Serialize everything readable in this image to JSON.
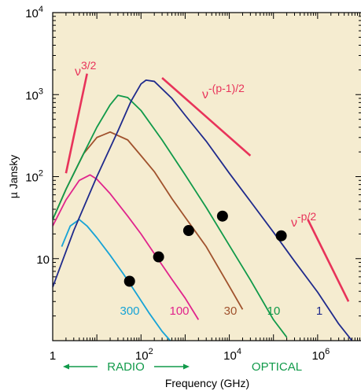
{
  "chart_data": {
    "type": "line",
    "xlabel": "Frequency (GHz)",
    "ylabel": "µ Jansky",
    "x_scale": "log",
    "y_scale": "log",
    "xlim": [
      1,
      10000000
    ],
    "ylim": [
      1,
      10000
    ],
    "x_ticks": [
      {
        "value": 1,
        "base": "1",
        "exp": ""
      },
      {
        "value": 100,
        "base": "10",
        "exp": "2"
      },
      {
        "value": 10000,
        "base": "10",
        "exp": "4"
      },
      {
        "value": 1000000,
        "base": "10",
        "exp": "6"
      }
    ],
    "y_ticks": [
      {
        "value": 10,
        "base": "10",
        "exp": ""
      },
      {
        "value": 100,
        "base": "10",
        "exp": "2"
      },
      {
        "value": 1000,
        "base": "10",
        "exp": "3"
      },
      {
        "value": 10000,
        "base": "10",
        "exp": "4"
      }
    ],
    "background_color": "#f5ecd0",
    "series": [
      {
        "label": "300",
        "color": "#17a3d6",
        "x": [
          1.6,
          2.5,
          4,
          6,
          10,
          20,
          40,
          80,
          150,
          300,
          500
        ],
        "y": [
          14,
          25,
          30,
          25,
          18,
          11,
          6.5,
          3.7,
          2.2,
          1.3,
          0.95
        ]
      },
      {
        "label": "100",
        "color": "#e0248c",
        "x": [
          1,
          2,
          4,
          7,
          10,
          20,
          50,
          100,
          200,
          500,
          1000,
          2000
        ],
        "y": [
          25,
          52,
          90,
          105,
          93,
          62,
          33,
          20,
          11.5,
          5.6,
          3.3,
          1.8
        ]
      },
      {
        "label": "30",
        "color": "#a0522d",
        "x": [
          1,
          2,
          5,
          10,
          20,
          50,
          100,
          200,
          500,
          1000,
          3000,
          10000,
          20000
        ],
        "y": [
          30,
          70,
          190,
          300,
          350,
          280,
          180,
          115,
          54,
          32,
          14,
          4.6,
          2.4
        ]
      },
      {
        "label": "10",
        "color": "#119a4a",
        "x": [
          1,
          2,
          5,
          10,
          20,
          30,
          50,
          100,
          300,
          1000,
          3000,
          10000,
          30000,
          100000,
          200000
        ],
        "y": [
          30,
          70,
          190,
          400,
          750,
          980,
          920,
          640,
          280,
          105,
          42,
          14.5,
          5.5,
          1.8,
          1.1
        ]
      },
      {
        "label": "1",
        "color": "#1f2a8c",
        "x": [
          1,
          3,
          10,
          30,
          60,
          100,
          130,
          200,
          500,
          1000,
          3000,
          10000,
          30000,
          100000,
          300000,
          1000000,
          3000000,
          6000000
        ],
        "y": [
          4.5,
          22,
          100,
          360,
          840,
          1350,
          1500,
          1450,
          900,
          560,
          270,
          110,
          50,
          21,
          9.3,
          3.9,
          1.6,
          1
        ]
      }
    ],
    "markers": {
      "color": "#000000",
      "x": [
        55,
        250,
        1200,
        7000,
        150000
      ],
      "y": [
        5.3,
        10.5,
        22,
        33,
        19
      ]
    },
    "slope_annotations": [
      {
        "base": "ν",
        "exp": "3/2",
        "color": "#e8335a",
        "line_x": [
          2,
          6
        ],
        "line_y": [
          110,
          1800
        ]
      },
      {
        "base": "ν",
        "exp": "-(p-1)/2",
        "color": "#e8335a",
        "line_x": [
          300,
          30000
        ],
        "line_y": [
          1600,
          180
        ]
      },
      {
        "base": "ν",
        "exp": "-p/2",
        "color": "#e8335a",
        "line_x": [
          600000,
          5000000
        ],
        "line_y": [
          30,
          3
        ]
      }
    ],
    "curve_labels": [
      "300",
      "100",
      "30",
      "10",
      "1"
    ],
    "regions": {
      "radio": "RADIO",
      "optical": "OPTICAL",
      "radio_color": "#119a4a",
      "optical_color": "#119a4a"
    }
  }
}
